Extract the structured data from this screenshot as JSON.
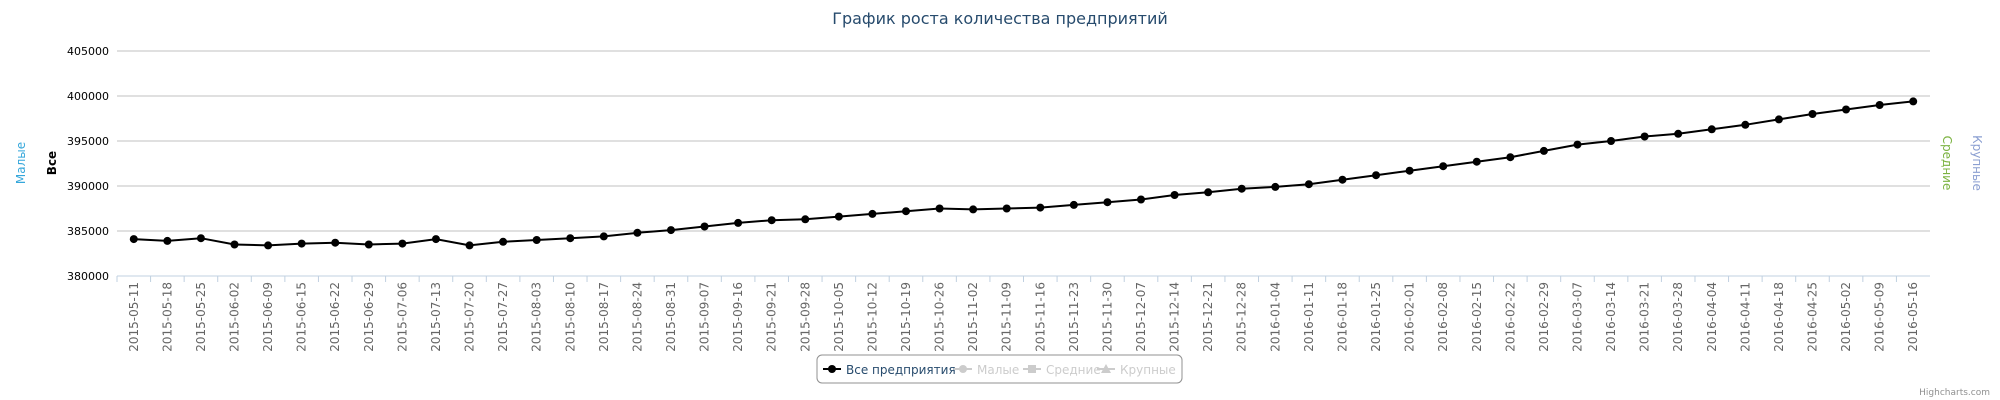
{
  "chart_data": {
    "type": "line",
    "title": "График роста количества предприятий",
    "categories": [
      "2015-05-11",
      "2015-05-18",
      "2015-05-25",
      "2015-06-02",
      "2015-06-09",
      "2015-06-15",
      "2015-06-22",
      "2015-06-29",
      "2015-07-06",
      "2015-07-13",
      "2015-07-20",
      "2015-07-27",
      "2015-08-03",
      "2015-08-10",
      "2015-08-17",
      "2015-08-24",
      "2015-08-31",
      "2015-09-07",
      "2015-09-16",
      "2015-09-21",
      "2015-09-28",
      "2015-10-05",
      "2015-10-12",
      "2015-10-19",
      "2015-10-26",
      "2015-11-02",
      "2015-11-09",
      "2015-11-16",
      "2015-11-23",
      "2015-11-30",
      "2015-12-07",
      "2015-12-14",
      "2015-12-21",
      "2015-12-28",
      "2016-01-04",
      "2016-01-11",
      "2016-01-18",
      "2016-01-25",
      "2016-02-01",
      "2016-02-08",
      "2016-02-15",
      "2016-02-22",
      "2016-02-29",
      "2016-03-07",
      "2016-03-14",
      "2016-03-21",
      "2016-03-28",
      "2016-04-04",
      "2016-04-11",
      "2016-04-18",
      "2016-04-25",
      "2016-05-02",
      "2016-05-09",
      "2016-05-16"
    ],
    "series": [
      {
        "name": "Все предприятия",
        "color": "#000000",
        "visible": true,
        "values": [
          384100,
          383900,
          384200,
          383500,
          383400,
          383600,
          383700,
          383500,
          383600,
          384100,
          383400,
          383800,
          384000,
          384200,
          384400,
          384800,
          385100,
          385500,
          385900,
          386200,
          386300,
          386600,
          386900,
          387200,
          387500,
          387400,
          387500,
          387600,
          387900,
          388200,
          388500,
          389000,
          389300,
          389700,
          389900,
          390200,
          390700,
          391200,
          391700,
          392200,
          392700,
          393200,
          393900,
          394600,
          395000,
          395500,
          395800,
          396300,
          396800,
          397400,
          398000,
          398500,
          399000,
          399400
        ]
      },
      {
        "name": "Малые",
        "color": "#35a7db",
        "visible": false
      },
      {
        "name": "Средние",
        "color": "#7cb342",
        "visible": false
      },
      {
        "name": "Крупные",
        "color": "#8b9fd1",
        "visible": false
      }
    ],
    "axis_titles": [
      {
        "text": "Малые",
        "color": "#35a7db"
      },
      {
        "text": "Все",
        "color": "#000000"
      },
      {
        "text": "Средние",
        "color": "#7cb342"
      },
      {
        "text": "Крупные",
        "color": "#8b9fd1"
      }
    ],
    "ylim": [
      380000,
      405000
    ],
    "yticks": [
      380000,
      385000,
      390000,
      395000,
      400000,
      405000
    ],
    "grid": true,
    "credits": "Highcharts.com"
  }
}
